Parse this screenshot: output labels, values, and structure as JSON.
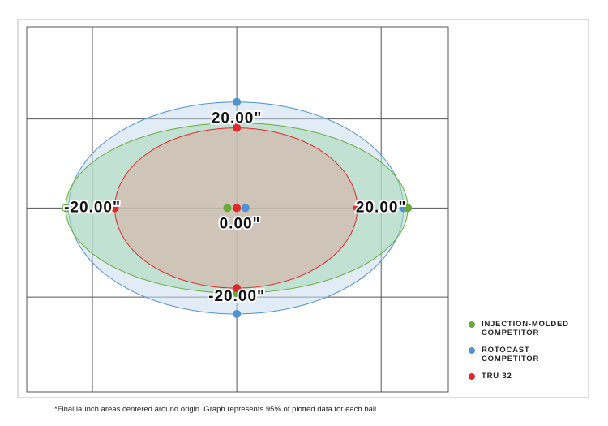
{
  "chart_data": {
    "type": "scatter",
    "xlim": [
      -29.1,
      29.3
    ],
    "ylim": [
      -41.3,
      40.7
    ],
    "xticks": [
      {
        "value": -20,
        "label": "-20.00\""
      },
      {
        "value": 0,
        "label": "0.00\""
      },
      {
        "value": 20,
        "label": "20.00\""
      }
    ],
    "yticks": [
      {
        "value": -20,
        "label": "-20.00\""
      },
      {
        "value": 20,
        "label": "20.00\""
      }
    ],
    "grid": true,
    "series": [
      {
        "name": "ROTOCAST COMPETITOR",
        "color": "#4f93d0",
        "fill": "#c9ddf1",
        "x": [
          1.2,
          -23.3,
          23.1,
          0,
          0
        ],
        "y": [
          0,
          0,
          0,
          23.8,
          -23.8
        ]
      },
      {
        "name": "INJECTION-MOLDED COMPETITOR",
        "color": "#6aaa3a",
        "fill": "#a8d8b4",
        "x": [
          -1.3,
          -23.7,
          23.7,
          0,
          0
        ],
        "y": [
          0,
          0,
          0,
          19.1,
          -19.1
        ]
      },
      {
        "name": "TRU 32",
        "color": "#e0282a",
        "fill": "#d8ada0",
        "x": [
          0,
          -16.9,
          16.7,
          0,
          0
        ],
        "y": [
          0,
          0,
          0,
          18,
          -18
        ]
      }
    ],
    "legend_order": [
      1,
      0,
      2
    ],
    "footnote": "*Final launch areas centered around origin. Graph represents 95% of plotted data for each ball."
  }
}
